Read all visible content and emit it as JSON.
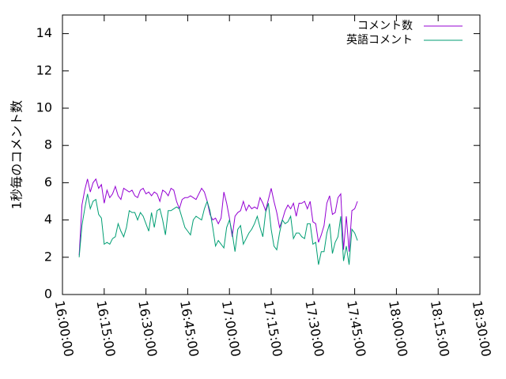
{
  "chart_data": {
    "type": "line",
    "ylabel": "1秒毎のコメント数",
    "xlabel": "",
    "ylim": [
      0,
      15
    ],
    "yticks": [
      0,
      2,
      4,
      6,
      8,
      10,
      12,
      14
    ],
    "xlim_minutes": [
      0,
      150
    ],
    "xticks": [
      {
        "label": "16:00:00",
        "minute": 0
      },
      {
        "label": "16:15:00",
        "minute": 15
      },
      {
        "label": "16:30:00",
        "minute": 30
      },
      {
        "label": "16:45:00",
        "minute": 45
      },
      {
        "label": "17:00:00",
        "minute": 60
      },
      {
        "label": "17:15:00",
        "minute": 75
      },
      {
        "label": "17:30:00",
        "minute": 90
      },
      {
        "label": "17:45:00",
        "minute": 105
      },
      {
        "label": "18:00:00",
        "minute": 120
      },
      {
        "label": "18:15:00",
        "minute": 135
      },
      {
        "label": "18:30:00",
        "minute": 150
      }
    ],
    "legend_position": "top-right",
    "grid": false,
    "x_start_minute": 6,
    "x_step_minutes": 1,
    "series": [
      {
        "name": "コメント数",
        "color": "#9400d3",
        "values": [
          2.1,
          4.8,
          5.6,
          6.2,
          5.5,
          6.0,
          6.2,
          5.7,
          5.9,
          4.9,
          5.6,
          5.2,
          5.4,
          5.8,
          5.3,
          5.1,
          5.7,
          5.6,
          5.5,
          5.6,
          5.3,
          5.2,
          5.6,
          5.7,
          5.4,
          5.5,
          5.3,
          5.5,
          5.4,
          5.0,
          5.6,
          5.5,
          5.3,
          5.7,
          5.6,
          5.0,
          4.6,
          5.1,
          5.2,
          5.2,
          5.3,
          5.2,
          5.1,
          5.4,
          5.7,
          5.5,
          5.0,
          4.3,
          4.0,
          4.1,
          3.8,
          4.1,
          5.5,
          4.9,
          4.1,
          3.1,
          4.2,
          4.4,
          4.5,
          5.0,
          4.5,
          4.8,
          4.6,
          4.7,
          4.6,
          5.2,
          4.9,
          4.5,
          5.1,
          5.7,
          5.0,
          4.4,
          3.6,
          4.0,
          4.5,
          4.8,
          4.6,
          4.9,
          4.2,
          4.9,
          4.9,
          5.0,
          4.6,
          5.0,
          3.9,
          3.8,
          2.8,
          3.2,
          3.7,
          4.9,
          5.3,
          4.3,
          4.4,
          5.2,
          5.4,
          2.4,
          4.2,
          2.3,
          4.5,
          4.6,
          5.0
        ]
      },
      {
        "name": "英語コメント",
        "color": "#009e73",
        "values": [
          2.0,
          3.7,
          4.6,
          5.4,
          4.6,
          5.0,
          5.1,
          4.3,
          4.1,
          2.7,
          2.8,
          2.7,
          3.0,
          3.1,
          3.8,
          3.4,
          3.1,
          3.6,
          4.5,
          4.4,
          4.4,
          4.0,
          4.4,
          4.2,
          3.8,
          3.4,
          4.4,
          3.6,
          4.5,
          4.6,
          4.0,
          3.2,
          4.5,
          4.5,
          4.6,
          4.7,
          4.6,
          4.1,
          3.6,
          3.4,
          3.2,
          4.0,
          4.2,
          4.1,
          4.0,
          4.6,
          5.0,
          4.5,
          3.6,
          2.6,
          2.9,
          2.7,
          2.5,
          3.6,
          4.0,
          3.3,
          2.3,
          3.5,
          3.7,
          2.7,
          3.0,
          3.3,
          3.5,
          3.8,
          4.2,
          3.6,
          3.1,
          4.4,
          4.9,
          3.5,
          2.6,
          2.4,
          3.3,
          4.0,
          3.8,
          3.9,
          4.2,
          3.0,
          3.3,
          3.3,
          3.1,
          3.0,
          3.8,
          3.8,
          2.7,
          2.8,
          1.6,
          2.3,
          2.3,
          3.3,
          3.8,
          2.2,
          2.8,
          3.1,
          4.2,
          1.8,
          2.6,
          1.6,
          3.5,
          3.3,
          2.9
        ]
      }
    ]
  }
}
